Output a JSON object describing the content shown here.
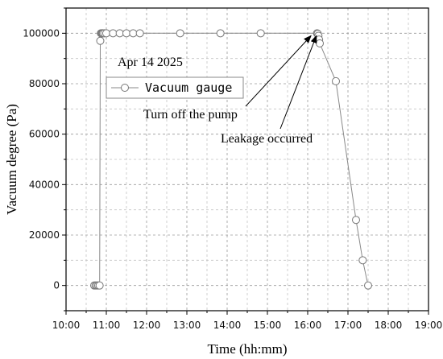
{
  "chart_data": {
    "type": "line",
    "xlabel": "Time (hh:mm)",
    "ylabel": "Vacuum degree (Pa)",
    "xlim": [
      "10:00",
      "19:00"
    ],
    "ylim": [
      -10000,
      110000
    ],
    "x_ticks": [
      "10:00",
      "11:00",
      "12:00",
      "13:00",
      "14:00",
      "15:00",
      "16:00",
      "17:00",
      "18:00",
      "19:00"
    ],
    "y_ticks": [
      0,
      20000,
      40000,
      60000,
      80000,
      100000
    ],
    "y_tick_labels": [
      "0",
      "20000",
      "40000",
      "60000",
      "80000",
      "100000"
    ],
    "grid": true,
    "legend_position": "top-left",
    "date_label": "Apr 14 2025",
    "series": [
      {
        "name": "Vacuum gauge",
        "color": "#888888",
        "marker": "open-circle",
        "x": [
          "10:42",
          "10:44",
          "10:46",
          "10:48",
          "10:50",
          "10:51",
          "10:52",
          "10:53",
          "10:54",
          "10:55",
          "10:57",
          "11:00",
          "11:10",
          "11:20",
          "11:30",
          "11:40",
          "11:50",
          "12:50",
          "13:50",
          "14:50",
          "16:14",
          "16:15",
          "16:16",
          "16:17",
          "16:18",
          "16:42",
          "17:12",
          "17:22",
          "17:30"
        ],
        "y": [
          0,
          0,
          0,
          0,
          0,
          97000,
          100000,
          100000,
          100000,
          100000,
          100000,
          100000,
          100000,
          100000,
          100000,
          100000,
          100000,
          100000,
          100000,
          100000,
          100000,
          99800,
          99000,
          97500,
          96000,
          81000,
          26000,
          10000,
          0
        ]
      }
    ],
    "annotations": [
      {
        "text": "Turn off the pump",
        "target_x": "16:05",
        "target_y": 100000
      },
      {
        "text": "Leakage occurred",
        "target_x": "16:13",
        "target_y": 100000
      }
    ]
  }
}
